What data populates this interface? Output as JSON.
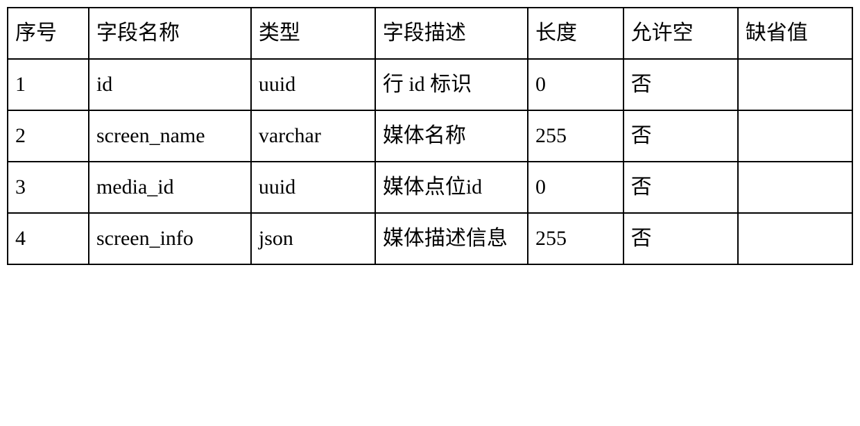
{
  "table": {
    "columns": [
      "序号",
      "字段名称",
      "类型",
      "字段描述",
      "长度",
      "允许空",
      "缺省值"
    ],
    "rows": [
      [
        "1",
        "id",
        "uuid",
        "行 id 标识",
        "0",
        "否",
        ""
      ],
      [
        "2",
        "screen_name",
        "varchar",
        "媒体名称",
        "255",
        "否",
        ""
      ],
      [
        "3",
        "media_id",
        "uuid",
        "媒体点位id",
        "0",
        "否",
        ""
      ],
      [
        "4",
        "screen_info",
        "json",
        "媒体描述信息",
        "255",
        "否",
        ""
      ]
    ],
    "border_color": "#000000",
    "background_color": "#ffffff",
    "font_size": 30,
    "font_family": "SimSun",
    "column_widths_pct": [
      8.5,
      17,
      13,
      16,
      10,
      12,
      12
    ]
  }
}
